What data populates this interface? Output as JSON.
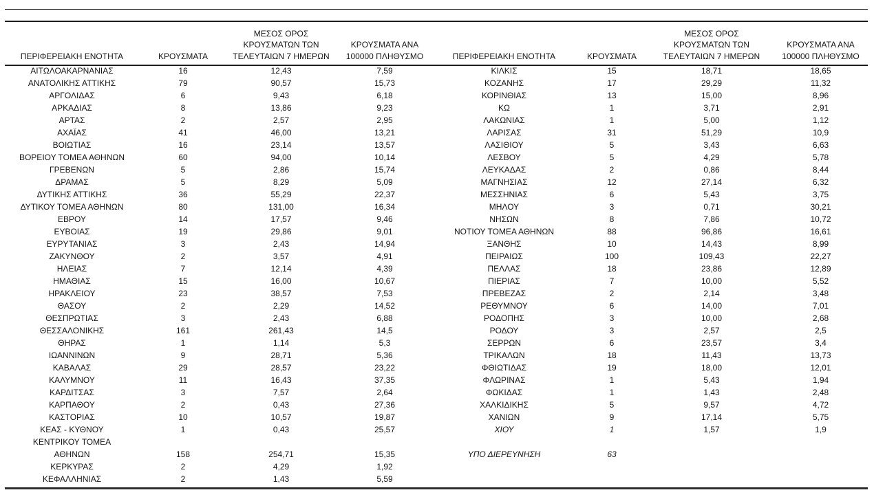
{
  "columns": {
    "region": "ΠΕΡΙΦΕΡΕΙΑΚΗ ΕΝΟΤΗΤΑ",
    "cases": "ΚΡΟΥΣΜΑΤΑ",
    "avg7": "ΜΕΣΟΣ ΟΡΟΣ\nΚΡΟΥΣΜΑΤΩΝ ΤΩΝ\nΤΕΛΕΥΤΑΙΩΝ 7 ΗΜΕΡΩΝ",
    "per100k": "ΚΡΟΥΣΜΑΤΑ ΑΝΑ\n100000 ΠΛΗΘΥΣΜΟ"
  },
  "left_table": {
    "rows": [
      [
        "ΑΙΤΩΛΟΑΚΑΡΝΑΝΙΑΣ",
        "16",
        "12,43",
        "7,59"
      ],
      [
        "ΑΝΑΤΟΛΙΚΗΣ ΑΤΤΙΚΗΣ",
        "79",
        "90,57",
        "15,73"
      ],
      [
        "ΑΡΓΟΛΙΔΑΣ",
        "6",
        "9,43",
        "6,18"
      ],
      [
        "ΑΡΚΑΔΙΑΣ",
        "8",
        "13,86",
        "9,23"
      ],
      [
        "ΑΡΤΑΣ",
        "2",
        "2,57",
        "2,95"
      ],
      [
        "ΑΧΑΪΑΣ",
        "41",
        "46,00",
        "13,21"
      ],
      [
        "ΒΟΙΩΤΙΑΣ",
        "16",
        "23,14",
        "13,57"
      ],
      [
        "ΒΟΡΕΙΟΥ ΤΟΜΕΑ ΑΘΗΝΩΝ",
        "60",
        "94,00",
        "10,14"
      ],
      [
        "ΓΡΕΒΕΝΩΝ",
        "5",
        "2,86",
        "15,74"
      ],
      [
        "ΔΡΑΜΑΣ",
        "5",
        "8,29",
        "5,09"
      ],
      [
        "ΔΥΤΙΚΗΣ ΑΤΤΙΚΗΣ",
        "36",
        "55,29",
        "22,37"
      ],
      [
        "ΔΥΤΙΚΟΥ ΤΟΜΕΑ ΑΘΗΝΩΝ",
        "80",
        "131,00",
        "16,34"
      ],
      [
        "ΕΒΡΟΥ",
        "14",
        "17,57",
        "9,46"
      ],
      [
        "ΕΥΒΟΙΑΣ",
        "19",
        "29,86",
        "9,01"
      ],
      [
        "ΕΥΡΥΤΑΝΙΑΣ",
        "3",
        "2,43",
        "14,94"
      ],
      [
        "ΖΑΚΥΝΘΟΥ",
        "2",
        "3,57",
        "4,91"
      ],
      [
        "ΗΛΕΙΑΣ",
        "7",
        "12,14",
        "4,39"
      ],
      [
        "ΗΜΑΘΙΑΣ",
        "15",
        "16,00",
        "10,67"
      ],
      [
        "ΗΡΑΚΛΕΙΟΥ",
        "23",
        "38,57",
        "7,53"
      ],
      [
        "ΘΑΣΟΥ",
        "2",
        "2,29",
        "14,52"
      ],
      [
        "ΘΕΣΠΡΩΤΙΑΣ",
        "3",
        "2,43",
        "6,88"
      ],
      [
        "ΘΕΣΣΑΛΟΝΙΚΗΣ",
        "161",
        "261,43",
        "14,5"
      ],
      [
        "ΘΗΡΑΣ",
        "1",
        "1,14",
        "5,3"
      ],
      [
        "ΙΩΑΝΝΙΝΩΝ",
        "9",
        "28,71",
        "5,36"
      ],
      [
        "ΚΑΒΑΛΑΣ",
        "29",
        "28,57",
        "23,22"
      ],
      [
        "ΚΑΛΥΜΝΟΥ",
        "11",
        "16,43",
        "37,35"
      ],
      [
        "ΚΑΡΔΙΤΣΑΣ",
        "3",
        "7,57",
        "2,64"
      ],
      [
        "ΚΑΡΠΑΘΟΥ",
        "2",
        "0,43",
        "27,36"
      ],
      [
        "ΚΑΣΤΟΡΙΑΣ",
        "10",
        "10,57",
        "19,87"
      ],
      [
        "ΚΕΑΣ - ΚΥΘΝΟΥ",
        "1",
        "0,43",
        "25,57"
      ],
      [
        "ΚΕΝΤΡΙΚΟΥ ΤΟΜΕΑ\nΑΘΗΝΩΝ",
        "158",
        "254,71",
        "15,35"
      ],
      [
        "ΚΕΡΚΥΡΑΣ",
        "2",
        "4,29",
        "1,92"
      ],
      [
        "ΚΕΦΑΛΛΗΝΙΑΣ",
        "2",
        "1,43",
        "5,59"
      ]
    ]
  },
  "right_table": {
    "rows": [
      [
        "ΚΙΛΚΙΣ",
        "15",
        "18,71",
        "18,65"
      ],
      [
        "ΚΟΖΑΝΗΣ",
        "17",
        "29,29",
        "11,32"
      ],
      [
        "ΚΟΡΙΝΘΙΑΣ",
        "13",
        "15,00",
        "8,96"
      ],
      [
        "ΚΩ",
        "1",
        "3,71",
        "2,91"
      ],
      [
        "ΛΑΚΩΝΙΑΣ",
        "1",
        "5,00",
        "1,12"
      ],
      [
        "ΛΑΡΙΣΑΣ",
        "31",
        "51,29",
        "10,9"
      ],
      [
        "ΛΑΣΙΘΙΟΥ",
        "5",
        "3,43",
        "6,63"
      ],
      [
        "ΛΕΣΒΟΥ",
        "5",
        "4,29",
        "5,78"
      ],
      [
        "ΛΕΥΚΑΔΑΣ",
        "2",
        "0,86",
        "8,44"
      ],
      [
        "ΜΑΓΝΗΣΙΑΣ",
        "12",
        "27,14",
        "6,32"
      ],
      [
        "ΜΕΣΣΗΝΙΑΣ",
        "6",
        "5,43",
        "3,75"
      ],
      [
        "ΜΗΛΟΥ",
        "3",
        "0,71",
        "30,21"
      ],
      [
        "ΝΗΣΩΝ",
        "8",
        "7,86",
        "10,72"
      ],
      [
        "ΝΟΤΙΟΥ ΤΟΜΕΑ ΑΘΗΝΩΝ",
        "88",
        "96,86",
        "16,61"
      ],
      [
        "ΞΑΝΘΗΣ",
        "10",
        "14,43",
        "8,99"
      ],
      [
        "ΠΕΙΡΑΙΩΣ",
        "100",
        "109,43",
        "22,27"
      ],
      [
        "ΠΕΛΛΑΣ",
        "18",
        "23,86",
        "12,89"
      ],
      [
        "ΠΙΕΡΙΑΣ",
        "7",
        "10,00",
        "5,52"
      ],
      [
        "ΠΡΕΒΕΖΑΣ",
        "2",
        "2,14",
        "3,48"
      ],
      [
        "ΡΕΘΥΜΝΟΥ",
        "6",
        "14,00",
        "7,01"
      ],
      [
        "ΡΟΔΟΠΗΣ",
        "3",
        "10,00",
        "2,68"
      ],
      [
        "ΡΟΔΟΥ",
        "3",
        "2,57",
        "2,5"
      ],
      [
        "ΣΕΡΡΩΝ",
        "6",
        "23,57",
        "3,4"
      ],
      [
        "ΤΡΙΚΑΛΩΝ",
        "18",
        "11,43",
        "13,73"
      ],
      [
        "ΦΘΙΩΤΙΔΑΣ",
        "19",
        "18,00",
        "12,01"
      ],
      [
        "ΦΛΩΡΙΝΑΣ",
        "1",
        "5,43",
        "1,94"
      ],
      [
        "ΦΩΚΙΔΑΣ",
        "1",
        "1,43",
        "2,48"
      ],
      [
        "ΧΑΛΚΙΔΙΚΗΣ",
        "5",
        "9,57",
        "4,72"
      ],
      [
        "ΧΑΝΙΩΝ",
        "9",
        "17,14",
        "5,75"
      ],
      [
        "ΧΙΟΥ",
        "1",
        "1,57",
        "1,9",
        "italic"
      ],
      [
        "",
        "",
        "",
        ""
      ],
      [
        "ΥΠΟ ΔΙΕΡΕΥΝΗΣΗ",
        "63",
        "",
        "",
        "italic"
      ]
    ]
  }
}
